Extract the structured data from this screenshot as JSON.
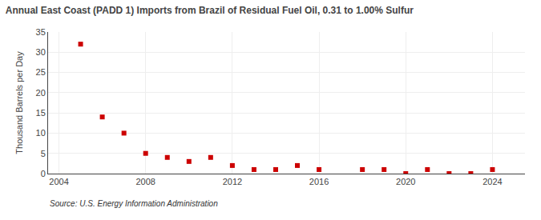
{
  "chart_data": {
    "type": "scatter",
    "title": "Annual East Coast (PADD 1) Imports from Brazil of Residual Fuel Oil, 0.31 to 1.00% Sulfur",
    "ylabel": "Thousand Barrels per Day",
    "source": "Source: U.S. Energy Information Administration",
    "x": [
      2005,
      2006,
      2007,
      2008,
      2009,
      2010,
      2011,
      2012,
      2013,
      2014,
      2015,
      2016,
      2018,
      2019,
      2020,
      2021,
      2022,
      2023,
      2024
    ],
    "values": [
      32,
      14,
      10,
      5,
      4,
      3,
      4,
      2,
      1,
      1,
      2,
      1,
      1,
      1,
      0,
      1,
      0,
      0,
      1
    ],
    "color": "#cc0000",
    "marker": "square",
    "xlim": [
      2003.5,
      2025.5
    ],
    "xticks": [
      2004,
      2008,
      2012,
      2016,
      2020,
      2024
    ],
    "ylim": [
      0,
      35
    ],
    "yticks": [
      0,
      5,
      10,
      15,
      20,
      25,
      30,
      35
    ],
    "grid": true
  }
}
